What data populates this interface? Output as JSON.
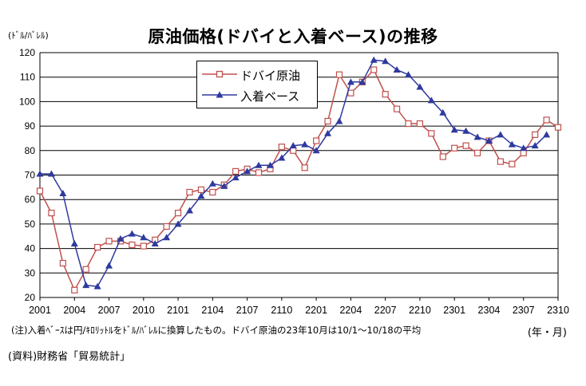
{
  "header": {
    "unit": "(ﾄﾞﾙ/ﾊﾞﾚﾙ)",
    "title": "原油価格(ドバイと入着ベース)の推移"
  },
  "footer": {
    "note": "(注)入着ﾍﾞｰｽは円/ｷﾛﾘｯﾄﾙをﾄﾞﾙ/ﾊﾞﾚﾙに換算したもの。ドバイ原油の23年10月は10/1～10/18の平均",
    "period_label": "(年・月)",
    "source": "(資料)財務省「貿易統計」"
  },
  "colors": {
    "dubai": "#c0504d",
    "arrival": "#2e3a9e",
    "grid": "#000000"
  },
  "chart_data": {
    "type": "line",
    "x": [
      "2001",
      "2002",
      "2003",
      "2004",
      "2005",
      "2006",
      "2007",
      "2008",
      "2009",
      "2010",
      "2011",
      "2012",
      "2101",
      "2102",
      "2103",
      "2104",
      "2105",
      "2106",
      "2107",
      "2108",
      "2109",
      "2110",
      "2111",
      "2112",
      "2201",
      "2202",
      "2203",
      "2204",
      "2205",
      "2206",
      "2207",
      "2208",
      "2209",
      "2210",
      "2211",
      "2212",
      "2301",
      "2302",
      "2303",
      "2304",
      "2305",
      "2306",
      "2307",
      "2308",
      "2309",
      "2310"
    ],
    "xtick_labels": [
      "2001",
      "2004",
      "2007",
      "2010",
      "2101",
      "2104",
      "2107",
      "2110",
      "2201",
      "2204",
      "2207",
      "2210",
      "2301",
      "2304",
      "2307",
      "2310"
    ],
    "ylim": [
      20,
      120
    ],
    "yticks": [
      20,
      30,
      40,
      50,
      60,
      70,
      80,
      90,
      100,
      110,
      120
    ],
    "legend_position": "top-left",
    "grid": true,
    "series": [
      {
        "name": "ドバイ原油",
        "marker": "hollow-square",
        "values": [
          63.5,
          54.5,
          34,
          23,
          31.5,
          40.5,
          43,
          43,
          41.5,
          41,
          43.5,
          49,
          54.5,
          63,
          64,
          63,
          66,
          71.5,
          72.5,
          71,
          72.5,
          81.5,
          80,
          73,
          84,
          92,
          111,
          103.5,
          108,
          113,
          103,
          97,
          91,
          91,
          87,
          77.5,
          81,
          82,
          79,
          84,
          75.5,
          74.5,
          79,
          86.5,
          92.5,
          89.5
        ]
      },
      {
        "name": "入着ベース",
        "marker": "filled-triangle",
        "values": [
          70.5,
          70.5,
          62.5,
          42,
          25,
          24.5,
          33,
          44,
          46,
          44.5,
          42,
          44.5,
          50,
          55.5,
          61.5,
          66.5,
          65.5,
          69,
          71.5,
          74,
          74,
          77,
          82,
          82.5,
          80,
          87,
          92,
          108,
          108,
          117,
          116.5,
          113,
          111,
          106,
          100.5,
          95.5,
          88.5,
          88,
          85.5,
          84,
          86.5,
          82.5,
          81,
          82,
          86.5,
          null
        ]
      }
    ]
  }
}
